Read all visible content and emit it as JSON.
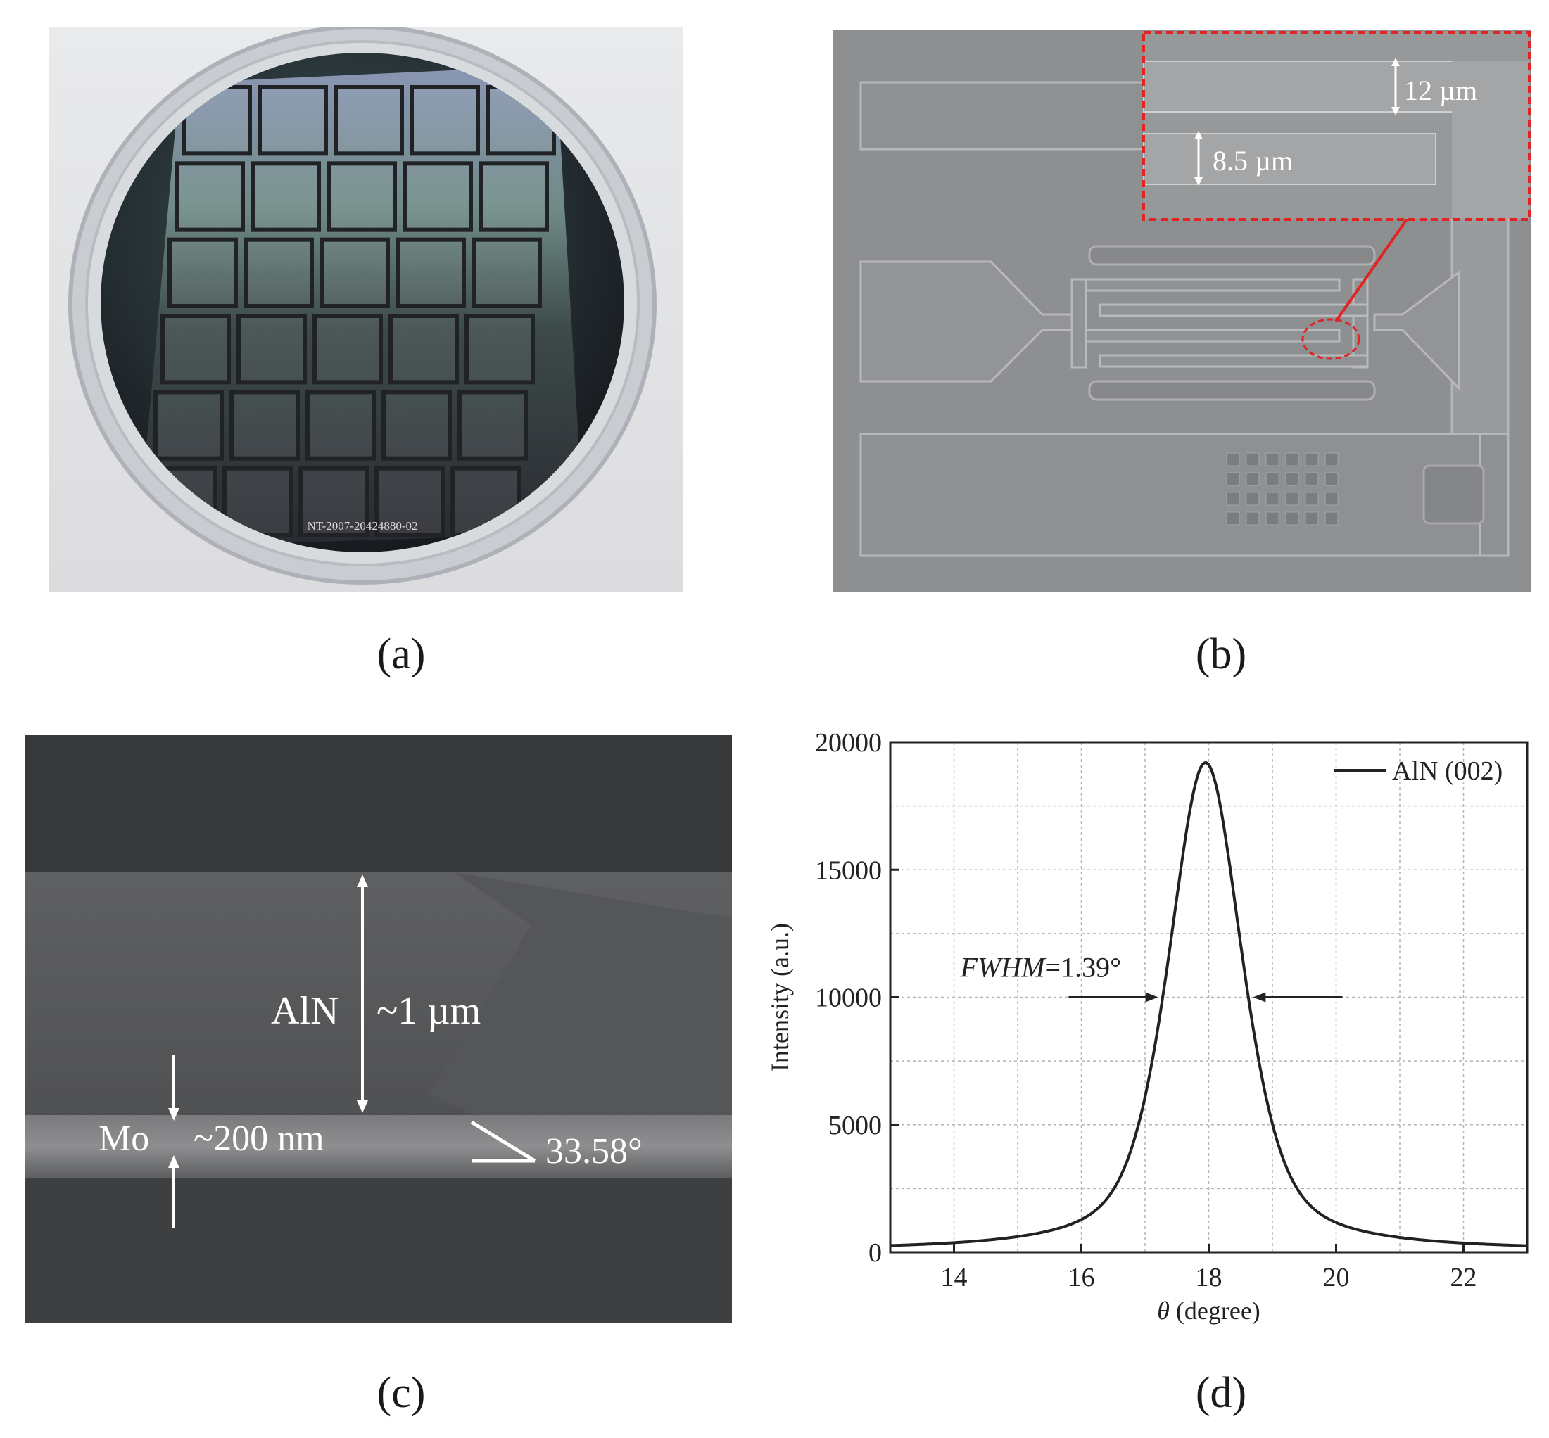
{
  "panels": {
    "a": {
      "caption": "(a)",
      "wafer_label": "NT-2007-20424880-02"
    },
    "b": {
      "caption": "(b)",
      "dim_gap": "12 µm",
      "dim_finger": "8.5 µm"
    },
    "c": {
      "caption": "(c)",
      "layer_top": "AlN",
      "layer_top_thickness": "~1 µm",
      "layer_bottom": "Mo",
      "layer_bottom_thickness": "~200 nm",
      "angle": "33.58°"
    },
    "d": {
      "caption": "(d)"
    }
  },
  "chart_data": {
    "type": "line",
    "xlabel_symbol": "θ",
    "xlabel_unit": " (degree)",
    "ylabel": "Intensity (a.u.)",
    "xlim": [
      13,
      23
    ],
    "ylim": [
      0,
      20000
    ],
    "xticks": [
      14,
      16,
      18,
      20,
      22
    ],
    "yticks": [
      0,
      5000,
      10000,
      15000,
      20000
    ],
    "grid": true,
    "legend_position": "top-right",
    "series": [
      {
        "name": "AlN (002)",
        "peak_center": 17.95,
        "peak_height": 19200,
        "fwhm": 1.39,
        "baseline": 60
      }
    ],
    "annotation_fwhm_label": "FWHM",
    "annotation_fwhm_value": "=1.39°"
  }
}
